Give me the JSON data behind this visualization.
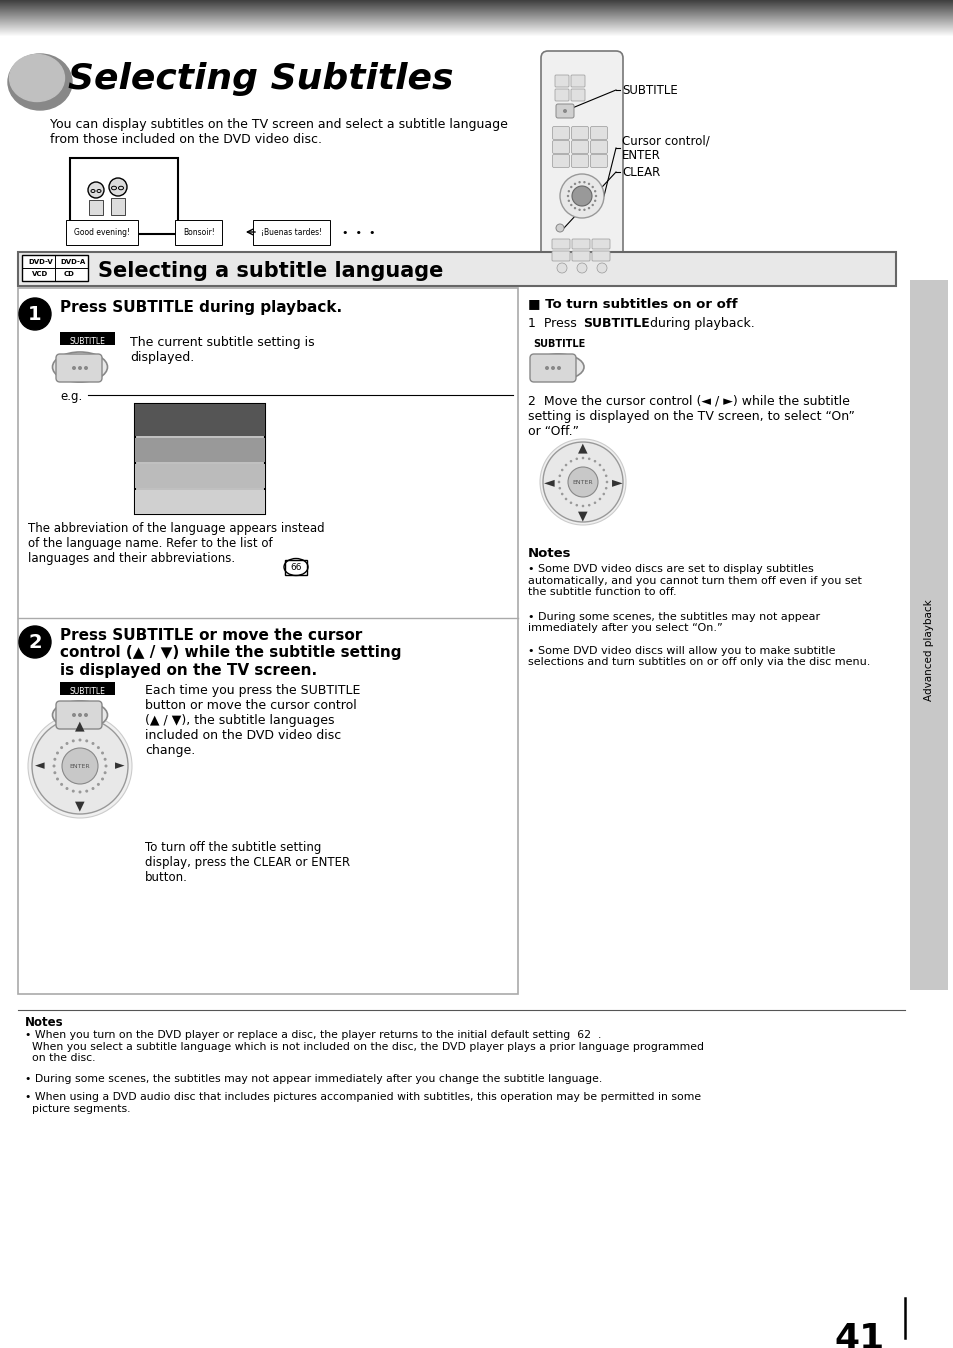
{
  "page_number": "41",
  "main_title": "Selecting Subtitles",
  "intro_text": "You can display subtitles on the TV screen and select a subtitle language\nfrom those included on the DVD video disc.",
  "section_title": "Selecting a subtitle language",
  "step1_bold": "Press SUBTITLE during playback.",
  "step1_sub": "The current subtitle setting is\ndisplayed.",
  "step2_bold": "Press SUBTITLE or move the cursor\ncontrol (▲ / ▼) while the subtitle setting\nis displayed on the TV screen.",
  "step2_sub": "Each time you press the SUBTITLE\nbutton or move the cursor control\n(▲ / ▼), the subtitle languages\nincluded on the DVD video disc\nchange.",
  "step2_clear": "To turn off the subtitle setting\ndisplay, press the CLEAR or ENTER\nbutton.",
  "turn_on_off_title": "■ To turn subtitles on or off",
  "turn_on_off_1a": "1  Press ",
  "turn_on_off_1b": "SUBTITLE",
  "turn_on_off_1c": " during playback.",
  "turn_on_off_2": "2  Move the cursor control (◄ / ►) while the subtitle\nsetting is displayed on the TV screen, to select “On”\nor “Off.”",
  "sidebar_subtitle": "SUBTITLE",
  "sidebar_cursor": "Cursor control/\nENTER",
  "sidebar_clear": "CLEAR",
  "notes_right_title": "Notes",
  "notes_right": [
    "Some DVD video discs are set to display subtitles\nautomatically, and you cannot turn them off even if you set\nthe subtitle function to off.",
    "During some scenes, the subtitles may not appear\nimmediately after you select “On.”",
    "Some DVD video discs will allow you to make subtitle\nselections and turn subtitles on or off only via the disc menu."
  ],
  "notes_bottom_title": "Notes",
  "notes_bottom": [
    "• When you turn on the DVD player or replace a disc, the player returns to the initial default setting  62  .\n  When you select a subtitle language which is not included on the disc, the DVD player plays a prior language programmed\n  on the disc.",
    "• During some scenes, the subtitles may not appear immediately after you change the subtitle language.",
    "• When using a DVD audio disc that includes pictures accompanied with subtitles, this operation may be permitted in some\n  picture segments."
  ],
  "bg_color": "#ffffff"
}
